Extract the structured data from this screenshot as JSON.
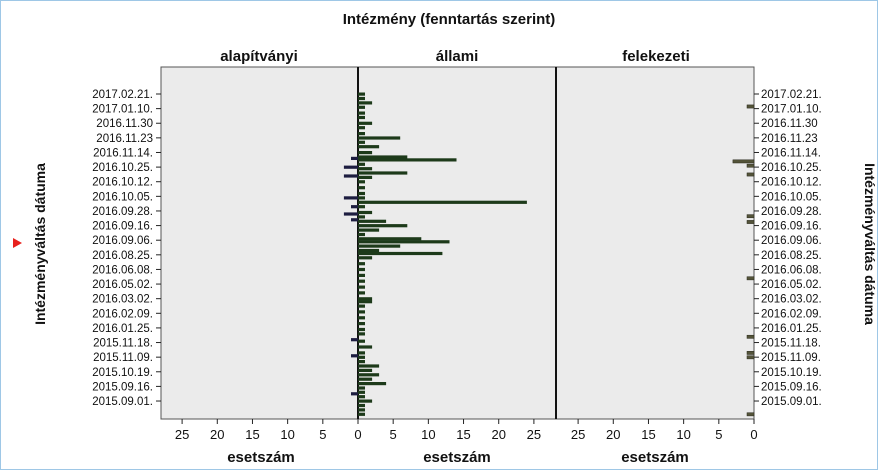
{
  "chart_data": {
    "type": "bar",
    "orientation": "horizontal",
    "title": "Intézmény (fenntartás szerint)",
    "panels": [
      "alapítványi",
      "állami",
      "felekezeti"
    ],
    "xlabel": "esetszám",
    "ylabel": "Intézményváltás dátuma",
    "x_ticks": [
      "25",
      "20",
      "15",
      "10",
      "5",
      "0",
      "5",
      "10",
      "15",
      "20",
      "25",
      "25",
      "20",
      "15",
      "10",
      "5",
      "0"
    ],
    "y_tick_labels": [
      "2017.02.21.",
      "2017.01.10.",
      "2016.11.30",
      "2016.11.23",
      "2016.11.14.",
      "2016.10.25.",
      "2016.10.12.",
      "2016.10.05.",
      "2016.09.28.",
      "2016.09.16.",
      "2016.09.06.",
      "2016.08.25.",
      "2016.06.08.",
      "2016.05.02.",
      "2016.03.02.",
      "2016.02.09.",
      "2016.01.25.",
      "2015.11.18.",
      "2015.11.09.",
      "2015.10.19.",
      "2015.09.16.",
      "2015.09.01."
    ],
    "series": [
      {
        "name": "alapítványi",
        "bars": [
          {
            "y": 4.4,
            "value": 1
          },
          {
            "y": 5.0,
            "value": 2
          },
          {
            "y": 5.6,
            "value": 2
          },
          {
            "y": 7.1,
            "value": 2
          },
          {
            "y": 7.7,
            "value": 1
          },
          {
            "y": 8.2,
            "value": 2
          },
          {
            "y": 8.6,
            "value": 1
          },
          {
            "y": 16.8,
            "value": 1
          },
          {
            "y": 17.9,
            "value": 1
          },
          {
            "y": 20.5,
            "value": 1
          }
        ]
      },
      {
        "name": "állami",
        "bars": [
          {
            "y": 0.0,
            "value": 1
          },
          {
            "y": 0.3,
            "value": 1
          },
          {
            "y": 0.6,
            "value": 2
          },
          {
            "y": 0.9,
            "value": 1
          },
          {
            "y": 1.3,
            "value": 1
          },
          {
            "y": 1.6,
            "value": 1
          },
          {
            "y": 2.0,
            "value": 2
          },
          {
            "y": 2.3,
            "value": 1
          },
          {
            "y": 2.7,
            "value": 1
          },
          {
            "y": 3.0,
            "value": 6
          },
          {
            "y": 3.3,
            "value": 1
          },
          {
            "y": 3.6,
            "value": 3
          },
          {
            "y": 4.0,
            "value": 2
          },
          {
            "y": 4.3,
            "value": 7
          },
          {
            "y": 4.5,
            "value": 14
          },
          {
            "y": 4.8,
            "value": 1
          },
          {
            "y": 5.1,
            "value": 2
          },
          {
            "y": 5.4,
            "value": 7
          },
          {
            "y": 5.7,
            "value": 2
          },
          {
            "y": 6.0,
            "value": 1
          },
          {
            "y": 6.4,
            "value": 1
          },
          {
            "y": 6.8,
            "value": 1
          },
          {
            "y": 7.1,
            "value": 1
          },
          {
            "y": 7.4,
            "value": 24
          },
          {
            "y": 7.7,
            "value": 1
          },
          {
            "y": 8.1,
            "value": 2
          },
          {
            "y": 8.4,
            "value": 1
          },
          {
            "y": 8.7,
            "value": 4
          },
          {
            "y": 9.0,
            "value": 7
          },
          {
            "y": 9.3,
            "value": 3
          },
          {
            "y": 9.6,
            "value": 1
          },
          {
            "y": 9.9,
            "value": 9
          },
          {
            "y": 10.1,
            "value": 13
          },
          {
            "y": 10.4,
            "value": 6
          },
          {
            "y": 10.7,
            "value": 3
          },
          {
            "y": 10.9,
            "value": 12
          },
          {
            "y": 11.2,
            "value": 2
          },
          {
            "y": 11.6,
            "value": 1
          },
          {
            "y": 12.0,
            "value": 1
          },
          {
            "y": 12.4,
            "value": 1
          },
          {
            "y": 12.8,
            "value": 1
          },
          {
            "y": 13.2,
            "value": 1
          },
          {
            "y": 13.6,
            "value": 1
          },
          {
            "y": 14.0,
            "value": 2
          },
          {
            "y": 14.2,
            "value": 2
          },
          {
            "y": 14.5,
            "value": 1
          },
          {
            "y": 14.9,
            "value": 1
          },
          {
            "y": 15.3,
            "value": 1
          },
          {
            "y": 15.7,
            "value": 1
          },
          {
            "y": 16.1,
            "value": 1
          },
          {
            "y": 16.4,
            "value": 1
          },
          {
            "y": 16.9,
            "value": 1
          },
          {
            "y": 17.3,
            "value": 2
          },
          {
            "y": 17.7,
            "value": 1
          },
          {
            "y": 18.0,
            "value": 1
          },
          {
            "y": 18.3,
            "value": 1
          },
          {
            "y": 18.6,
            "value": 3
          },
          {
            "y": 18.9,
            "value": 2
          },
          {
            "y": 19.2,
            "value": 3
          },
          {
            "y": 19.5,
            "value": 2
          },
          {
            "y": 19.8,
            "value": 4
          },
          {
            "y": 20.1,
            "value": 1
          },
          {
            "y": 20.4,
            "value": 1
          },
          {
            "y": 20.7,
            "value": 1
          },
          {
            "y": 21.0,
            "value": 2
          },
          {
            "y": 21.3,
            "value": 1
          },
          {
            "y": 21.6,
            "value": 1
          },
          {
            "y": 21.9,
            "value": 1
          }
        ]
      },
      {
        "name": "felekezeti",
        "bars": [
          {
            "y": 0.85,
            "value": 1
          },
          {
            "y": 4.6,
            "value": 3
          },
          {
            "y": 4.9,
            "value": 1
          },
          {
            "y": 5.5,
            "value": 1
          },
          {
            "y": 8.35,
            "value": 1
          },
          {
            "y": 8.75,
            "value": 1
          },
          {
            "y": 12.6,
            "value": 1
          },
          {
            "y": 16.6,
            "value": 1
          },
          {
            "y": 17.7,
            "value": 1
          },
          {
            "y": 18.0,
            "value": 1
          },
          {
            "y": 21.9,
            "value": 1
          }
        ]
      }
    ],
    "xlim": [
      0,
      28
    ],
    "colors": {
      "plot_bg": "#ebebeb",
      "bar_state": "#1d3a1a",
      "bar_foundation": "#1d1d40",
      "bar_religious": "#54543a",
      "marker": "#e8211d"
    }
  }
}
